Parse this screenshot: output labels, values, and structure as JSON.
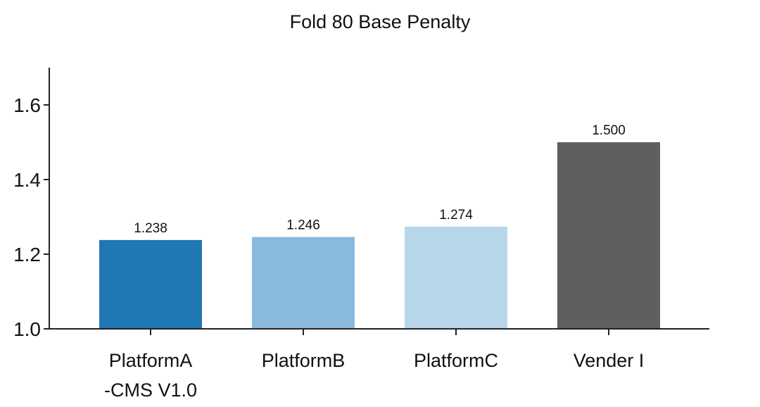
{
  "chart_data": {
    "type": "bar",
    "title": "Fold 80 Base Penalty",
    "categories": [
      [
        "PlatformA",
        "-CMS V1.0"
      ],
      [
        "PlatformB"
      ],
      [
        "PlatformC"
      ],
      [
        "Vender I"
      ]
    ],
    "values": [
      1.238,
      1.246,
      1.274,
      1.5
    ],
    "value_labels": [
      "1.238",
      "1.246",
      "1.274",
      "1.500"
    ],
    "colors": [
      "#1f77b4",
      "#89b9dc",
      "#b8d6e9",
      "#5f5f5f"
    ],
    "yticks": [
      1.0,
      1.2,
      1.4,
      1.6
    ],
    "ytick_labels": [
      "1.0",
      "1.2",
      "1.4",
      "1.6"
    ],
    "ylim": [
      1.0,
      1.7
    ],
    "xlabel": "",
    "ylabel": "",
    "grid": false
  }
}
